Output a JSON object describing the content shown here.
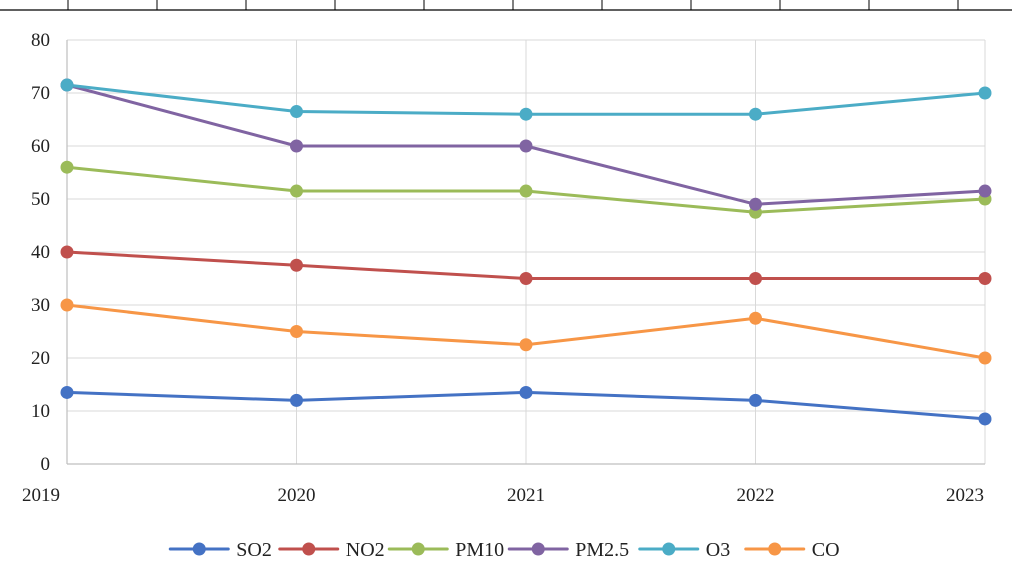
{
  "chart_data": {
    "type": "line",
    "title": "",
    "xlabel": "",
    "ylabel": "",
    "categories": [
      "2019",
      "2020",
      "2021",
      "2022",
      "2023"
    ],
    "ylim": [
      0,
      80
    ],
    "yticks": [
      0,
      10,
      20,
      30,
      40,
      50,
      60,
      70,
      80
    ],
    "grid": true,
    "legend_position": "bottom",
    "series": [
      {
        "name": "SO2",
        "color": "#4472C4",
        "values": [
          13.5,
          12,
          13.5,
          12,
          8.5
        ]
      },
      {
        "name": "NO2",
        "color": "#C0504D",
        "values": [
          40,
          37.5,
          35,
          35,
          35
        ]
      },
      {
        "name": "PM10",
        "color": "#9BBB59",
        "values": [
          56,
          51.5,
          51.5,
          47.5,
          50
        ]
      },
      {
        "name": "PM2.5",
        "color": "#8064A2",
        "values": [
          71.5,
          60,
          60,
          49,
          51.5
        ]
      },
      {
        "name": "O3",
        "color": "#4BACC6",
        "values": [
          71.5,
          66.5,
          66,
          66,
          70
        ]
      },
      {
        "name": "CO",
        "color": "#F79646",
        "values": [
          30,
          25,
          22.5,
          27.5,
          20
        ]
      }
    ]
  }
}
